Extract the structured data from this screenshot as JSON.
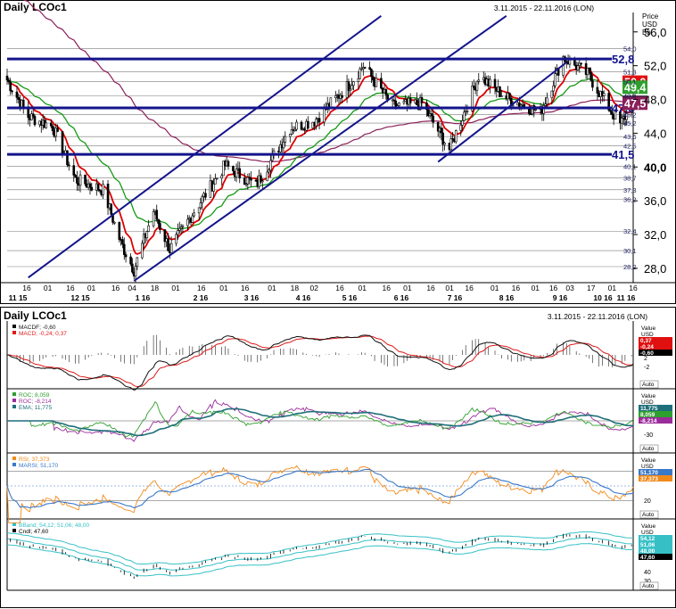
{
  "colors": {
    "candle": "#000000",
    "ema": "#dd0000",
    "sma50": "#159a15",
    "sma200": "#8a1f5a",
    "channel": "#14148c",
    "hline": "#14148c",
    "grid": "#7a7a7a",
    "macd_line": "#111111",
    "macd_signal": "#e01a1a",
    "roc_green": "#2ea02e",
    "roc_purple": "#9b2c9b",
    "ema_teal": "#1f6f7a",
    "rsi_orange": "#f28a1a",
    "rsi_ma": "#3a78c8",
    "bb_band": "#36c0c6"
  },
  "main": {
    "title": "Daily LCOc1",
    "date_range": "3.11.2015 - 22.11.2016 (LON)",
    "axis_caption": [
      "Price",
      "USD",
      "Bbl"
    ],
    "major_ticks": [
      "56,0",
      "52,0",
      "48,0",
      "44,0",
      "40,0",
      "36,0",
      "32,0",
      "28,0"
    ],
    "minor_ticks": [
      "54,0",
      "51,3",
      "50,1",
      "48,4",
      "46,2",
      "45,2",
      "43,6",
      "42,5",
      "40,1",
      "38,7",
      "37,3",
      "36,2",
      "32,4",
      "30,1",
      "28,2"
    ],
    "hline_values": [
      52.8,
      47.0,
      41.5
    ],
    "hline_labels": [
      "52,8",
      "47,0",
      "41,5"
    ],
    "badges": [
      {
        "label": "50,0",
        "value": 50.0,
        "color": "#e01010"
      },
      {
        "label": "49,4",
        "value": 49.4,
        "color": "#2ea02e"
      },
      {
        "label": "47,6",
        "value": 47.6,
        "color": "#000000"
      },
      {
        "label": "47,5",
        "value": 47.5,
        "color": "#8a1f5a"
      }
    ]
  },
  "x_axis": {
    "day_labels": [
      "16",
      "01",
      "16",
      "01",
      "16",
      "04",
      "18",
      "01",
      "16",
      "01",
      "16",
      "01",
      "18",
      "02",
      "16",
      "01",
      "16",
      "01",
      "16",
      "01",
      "16",
      "01",
      "16",
      "01",
      "16",
      "03",
      "17",
      "01",
      "16"
    ],
    "month_labels": [
      "11 15",
      "12 15",
      "1 16",
      "2 16",
      "3 16",
      "4 16",
      "5 16",
      "6 16",
      "7 16",
      "8 16",
      "9 16",
      "10 16",
      "11 16"
    ]
  },
  "lower": {
    "title": "Daily LCOc1",
    "date_range": "3.11.2015 - 22.11.2016 (LON)",
    "auto_label": "Auto",
    "macd": {
      "legend": [
        "MACDF; -0,60",
        "MACD; -0,24; 0,37"
      ],
      "axis_caption": [
        "Value",
        "USD"
      ],
      "ticks": [
        "2",
        "-2"
      ],
      "badges": [
        "0,37",
        "-0,24",
        "-0,60"
      ]
    },
    "roc": {
      "legend": [
        "ROC; 8,059",
        "ROC; -8,214",
        "EMA; 11,775"
      ],
      "axis_caption": [
        "Value",
        "USD"
      ],
      "ticks": [
        "-30"
      ],
      "badges": [
        "11,775",
        "8,059",
        "-8,214"
      ]
    },
    "rsi": {
      "legend": [
        "RSI; 37,373",
        "MARSI; 51,170"
      ],
      "axis_caption": [
        "Value",
        "USD",
        "Bbl"
      ],
      "ticks": [
        "20"
      ],
      "badges": [
        "51,170",
        "37,373"
      ]
    },
    "bb": {
      "legend": [
        "BBand; 54,12; 51,06; 48,00",
        "Cndl; 47,60"
      ],
      "axis_caption": [
        "Value",
        "USD",
        "Bbl"
      ],
      "ticks": [
        "40",
        "30"
      ],
      "badges": [
        "54,12",
        "51,06",
        "48,00",
        "47,60"
      ]
    }
  },
  "chart_data": {
    "type": "candlestick",
    "title": "Daily LCOc1",
    "ylim": [
      26.3,
      58.3
    ],
    "x_months": [
      "11 15",
      "12 15",
      "1 16",
      "2 16",
      "3 16",
      "4 16",
      "5 16",
      "6 16",
      "7 16",
      "8 16",
      "9 16",
      "10 16",
      "11 16"
    ],
    "price_anchors": [
      {
        "date": "2015-11-03",
        "close": 50.3
      },
      {
        "date": "2015-11-16",
        "close": 46.0
      },
      {
        "date": "2015-12-01",
        "close": 44.8
      },
      {
        "date": "2015-12-15",
        "close": 38.5
      },
      {
        "date": "2016-01-01",
        "close": 37.3
      },
      {
        "date": "2016-01-12",
        "close": 31.0
      },
      {
        "date": "2016-01-20",
        "close": 27.8
      },
      {
        "date": "2016-02-01",
        "close": 34.8
      },
      {
        "date": "2016-02-11",
        "close": 30.2
      },
      {
        "date": "2016-02-25",
        "close": 34.5
      },
      {
        "date": "2016-03-16",
        "close": 40.2
      },
      {
        "date": "2016-04-04",
        "close": 37.8
      },
      {
        "date": "2016-04-25",
        "close": 44.6
      },
      {
        "date": "2016-05-10",
        "close": 45.5
      },
      {
        "date": "2016-06-01",
        "close": 49.9
      },
      {
        "date": "2016-06-09",
        "close": 52.0
      },
      {
        "date": "2016-06-27",
        "close": 47.2
      },
      {
        "date": "2016-07-15",
        "close": 47.5
      },
      {
        "date": "2016-08-01",
        "close": 42.1
      },
      {
        "date": "2016-08-19",
        "close": 50.8
      },
      {
        "date": "2016-09-05",
        "close": 48.2
      },
      {
        "date": "2016-09-26",
        "close": 46.5
      },
      {
        "date": "2016-10-10",
        "close": 53.0
      },
      {
        "date": "2016-10-25",
        "close": 51.0
      },
      {
        "date": "2016-11-14",
        "close": 45.0
      },
      {
        "date": "2016-11-22",
        "close": 47.6
      }
    ],
    "ema_last": 50.0,
    "sma50_last": 49.4,
    "sma200_last": 47.5,
    "horizontal_levels": [
      52.8,
      47.0,
      41.5
    ],
    "channel_lines": [
      {
        "from": {
          "date": "2015-11-16",
          "price": 26.9
        },
        "to": {
          "date": "2016-06-20",
          "price": 57.9
        }
      },
      {
        "from": {
          "date": "2016-01-20",
          "price": 26.5
        },
        "to": {
          "date": "2016-09-05",
          "price": 57.9
        }
      },
      {
        "from": {
          "date": "2016-07-25",
          "price": 40.6
        },
        "to": {
          "date": "2016-10-12",
          "price": 52.4
        }
      }
    ],
    "indicators": {
      "macdf": -0.6,
      "macd": -0.24,
      "macd_signal": 0.37,
      "roc_a": 8.059,
      "roc_b": -8.214,
      "roc_ema": 11.775,
      "rsi": 37.373,
      "marsi": 51.17,
      "bband_upper": 54.12,
      "bband_mid": 51.06,
      "bband_lower": 48.0,
      "cndl": 47.6
    }
  }
}
